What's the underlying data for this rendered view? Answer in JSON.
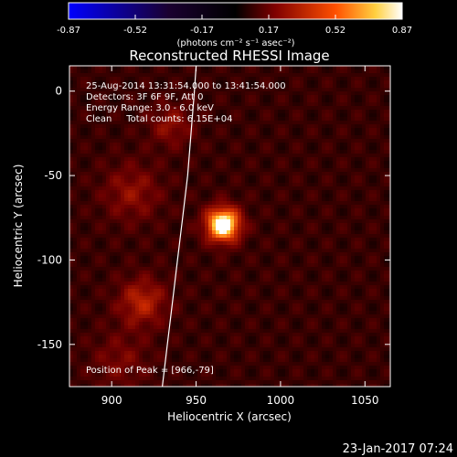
{
  "chart_data": {
    "type": "heatmap",
    "title": "Reconstructed RHESSI Image",
    "xlabel": "Heliocentric X (arcsec)",
    "ylabel": "Heliocentric Y (arcsec)",
    "xlim": [
      875,
      1065
    ],
    "ylim": [
      -175,
      15
    ],
    "x_ticks": [
      900,
      950,
      1000,
      1050
    ],
    "y_ticks": [
      0,
      -50,
      -100,
      -150
    ],
    "colorbar": {
      "min": -0.87,
      "max": 0.87,
      "ticks": [
        "-0.87",
        "-0.52",
        "-0.17",
        "0.17",
        "0.52",
        "0.87"
      ],
      "unit_label": "(photons cm⁻² s⁻¹ asec⁻²)",
      "colormap": [
        "#0000ff",
        "#000000",
        "#800000",
        "#ff5000",
        "#ffd040",
        "#ffffff"
      ]
    },
    "annotations": [
      "25-Aug-2014 13:31:54.000 to 13:41:54.000",
      "Detectors: 3F 6F 9F, Att 0",
      "Energy Range: 3.0 - 6.0 keV",
      "Clean     Total counts: 6.15E+04"
    ],
    "peak": {
      "x": 966,
      "y": -79,
      "label": "Position of Peak = [966,-79]"
    },
    "limb_curve": [
      [
        950,
        15
      ],
      [
        949,
        0
      ],
      [
        947,
        -25
      ],
      [
        945,
        -50
      ],
      [
        942,
        -75
      ],
      [
        939,
        -100
      ],
      [
        936,
        -125
      ],
      [
        933,
        -150
      ],
      [
        930,
        -175
      ]
    ],
    "sources": [
      {
        "x": 966,
        "y": -79,
        "intensity": 0.87,
        "sigma": 7
      },
      {
        "x": 918,
        "y": -125,
        "intensity": 0.3,
        "sigma": 10
      },
      {
        "x": 912,
        "y": -60,
        "intensity": 0.2,
        "sigma": 12
      },
      {
        "x": 935,
        "y": -20,
        "intensity": 0.2,
        "sigma": 9
      },
      {
        "x": 905,
        "y": -160,
        "intensity": 0.15,
        "sigma": 12
      }
    ],
    "background_intensity": 0.2
  },
  "footer": {
    "timestamp": "23-Jan-2017 07:24"
  }
}
